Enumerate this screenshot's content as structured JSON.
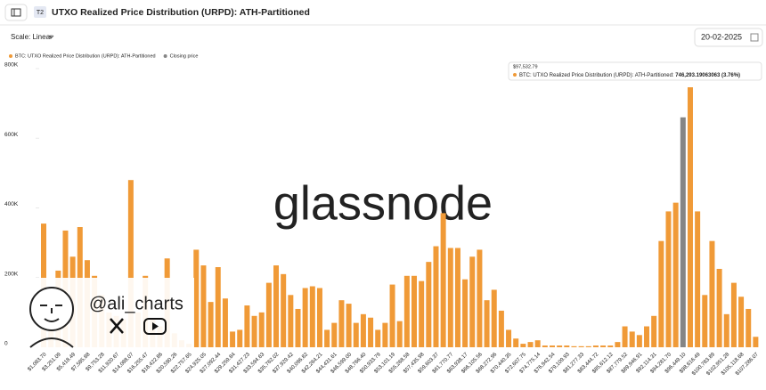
{
  "header": {
    "badge": "T2",
    "title": "UTXO Realized Price Distribution (URPD): ATH-Partitioned"
  },
  "controls": {
    "scale": "Scale: Linear",
    "date": "20-02-2025"
  },
  "watermark": "glassnode",
  "overlay": {
    "handle": "@ali_charts"
  },
  "tooltip": {
    "title": "$97,532.79",
    "series": "BTC: UTXO Realized Price Distribution (URPD): ATH-Partitioned:",
    "value": "746,293.19063063",
    "share": "(3.76%)"
  },
  "chart_data": {
    "type": "bar",
    "categories": [
      "$1,083.70",
      null,
      "$3,251.09",
      null,
      "$5,418.49",
      null,
      "$7,585.88",
      null,
      "$9,753.28",
      null,
      "$11,920.67",
      null,
      "$14,088.07",
      null,
      "$16,255.47",
      null,
      "$18,422.86",
      null,
      "$20,590.26",
      null,
      "$22,757.65",
      null,
      "$24,925.05",
      null,
      "$27,092.44",
      null,
      "$29,259.84",
      null,
      "$31,427.23",
      null,
      "$33,594.63",
      null,
      "$35,762.02",
      null,
      "$37,929.42",
      null,
      "$40,096.82",
      null,
      "$42,264.21",
      null,
      "$44,431.61",
      null,
      "$46,599.00",
      null,
      "$48,766.40",
      null,
      "$50,933.79",
      null,
      "$53,101.19",
      null,
      "$55,268.58",
      null,
      "$57,435.98",
      null,
      "$59,603.37",
      null,
      "$61,770.77",
      null,
      "$63,938.17",
      null,
      "$66,105.56",
      null,
      "$68,272.96",
      null,
      "$70,440.35",
      null,
      "$72,607.75",
      null,
      "$74,775.14",
      null,
      "$76,942.54",
      null,
      "$79,109.93",
      null,
      "$81,277.33",
      null,
      "$83,444.72",
      null,
      "$85,612.12",
      null,
      "$87,779.52",
      null,
      "$89,946.91",
      null,
      "$92,114.31",
      null,
      "$94,281.70",
      null,
      "$96,449.10",
      null,
      "$98,616.49",
      null,
      "$100,783.89",
      null,
      "$102,951.28",
      null,
      "$105,118.68",
      null,
      "$107,286.07"
    ],
    "series": [
      {
        "name": "BTC: UTXO Realized Price Distribution (URPD): ATH-Partitioned",
        "color": "#f09a37",
        "values": [
          355000,
          120000,
          220000,
          335000,
          260000,
          345000,
          250000,
          205000,
          150000,
          100000,
          90000,
          80000,
          480000,
          100000,
          205000,
          80000,
          60000,
          255000,
          40000,
          20000,
          10000,
          280000,
          235000,
          130000,
          230000,
          140000,
          45000,
          50000,
          120000,
          90000,
          100000,
          185000,
          235000,
          210000,
          150000,
          110000,
          170000,
          175000,
          170000,
          50000,
          70000,
          135000,
          125000,
          70000,
          95000,
          85000,
          50000,
          70000,
          180000,
          75000,
          205000,
          205000,
          190000,
          245000,
          290000,
          385000,
          285000,
          285000,
          195000,
          260000,
          280000,
          135000,
          165000,
          105000,
          50000,
          25000,
          10000,
          15000,
          20000,
          5000,
          5000,
          5000,
          5000,
          3000,
          3000,
          3000,
          5000,
          5000,
          5000,
          15000,
          60000,
          45000,
          35000,
          60000,
          90000,
          305000,
          390000,
          415000,
          null,
          746293.19063063,
          390000,
          150000,
          305000,
          225000,
          95000,
          185000,
          145000,
          110000,
          30000
        ]
      },
      {
        "name": "Closing price",
        "color": "#858585",
        "values": [
          null,
          null,
          null,
          null,
          null,
          null,
          null,
          null,
          null,
          null,
          null,
          null,
          null,
          null,
          null,
          null,
          null,
          null,
          null,
          null,
          null,
          null,
          null,
          null,
          null,
          null,
          null,
          null,
          null,
          null,
          null,
          null,
          null,
          null,
          null,
          null,
          null,
          null,
          null,
          null,
          null,
          null,
          null,
          null,
          null,
          null,
          null,
          null,
          null,
          null,
          null,
          null,
          null,
          null,
          null,
          null,
          null,
          null,
          null,
          null,
          null,
          null,
          null,
          null,
          null,
          null,
          null,
          null,
          null,
          null,
          null,
          null,
          null,
          null,
          null,
          null,
          null,
          null,
          null,
          null,
          null,
          null,
          null,
          null,
          null,
          null,
          null,
          null,
          660000,
          null,
          null,
          null,
          null,
          null,
          null,
          null,
          null,
          null,
          null
        ]
      }
    ],
    "ylim": [
      0,
      800000
    ],
    "yticks": [
      0,
      {
        "value": 200000,
        "label": "200K"
      },
      {
        "value": 400000,
        "label": "400K"
      },
      {
        "value": 600000,
        "label": "600K"
      },
      {
        "value": 800000,
        "label": "800K"
      }
    ]
  }
}
